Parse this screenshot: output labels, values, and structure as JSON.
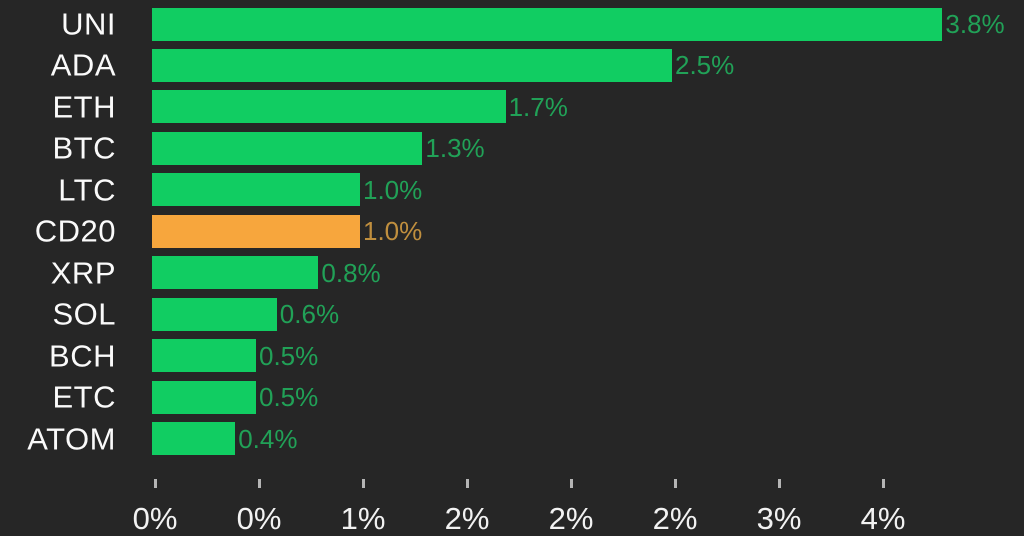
{
  "chart_data": {
    "type": "bar",
    "orientation": "horizontal",
    "title": "",
    "categories": [
      "UNI",
      "ADA",
      "ETH",
      "BTC",
      "LTC",
      "CD20",
      "XRP",
      "SOL",
      "BCH",
      "ETC",
      "ATOM"
    ],
    "values": [
      3.8,
      2.5,
      1.7,
      1.3,
      1.0,
      1.0,
      0.8,
      0.6,
      0.5,
      0.5,
      0.4
    ],
    "value_labels": [
      "3.8%",
      "2.5%",
      "1.7%",
      "1.3%",
      "1.0%",
      "1.0%",
      "0.8%",
      "0.6%",
      "0.5%",
      "0.5%",
      "0.4%"
    ],
    "unit": "%",
    "highlight_category": "CD20",
    "highlight_index": 5,
    "grid": false,
    "legend": null,
    "x_axis": {
      "range": [
        0,
        4.19
      ],
      "tick_values": [
        0,
        0.5,
        1,
        1.5,
        2,
        2.5,
        3,
        3.5
      ],
      "tick_labels": [
        "0%",
        "0%",
        "1%",
        "2%",
        "2%",
        "2%",
        "3%",
        "4%"
      ]
    },
    "colors": {
      "background": "#262626",
      "bar_positive": "#11cd62",
      "bar_highlight": "#f7a63d",
      "value_label_positive": "#21a157",
      "value_label_highlight": "#c08f3e",
      "category_text": "#fafafa",
      "axis_text": "#f2f2f2",
      "tick_mark": "#b5b5b5"
    }
  }
}
